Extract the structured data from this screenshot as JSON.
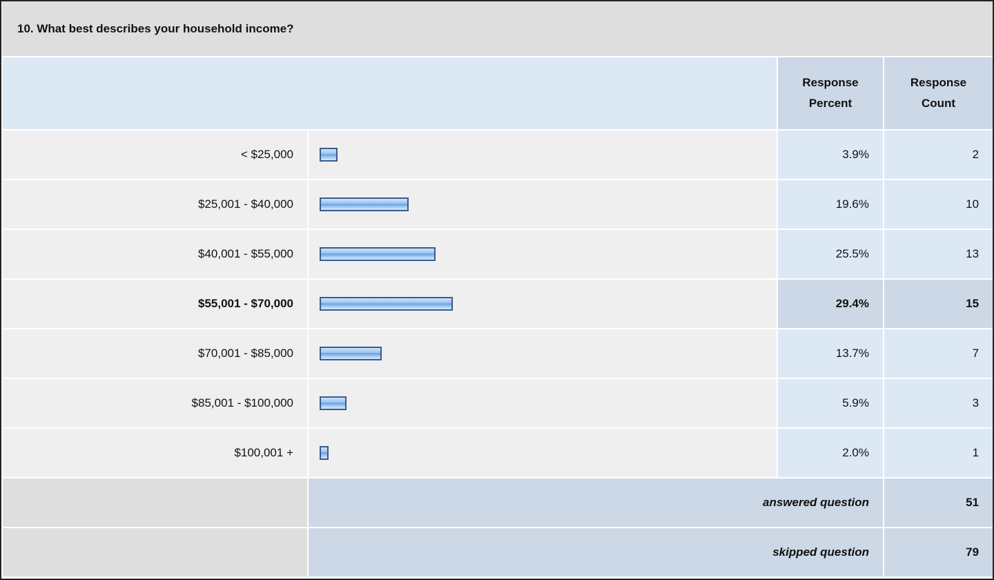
{
  "title": "10. What best describes your household income?",
  "header": {
    "percent": "Response Percent",
    "count": "Response Count"
  },
  "rows": [
    {
      "label": "< $25,000",
      "percent": {
        "value": 3.9,
        "label": "3.9%"
      },
      "count": 2
    },
    {
      "label": "$25,001 - $40,000",
      "percent": {
        "value": 19.6,
        "label": "19.6%"
      },
      "count": 10
    },
    {
      "label": "$40,001 - $55,000",
      "percent": {
        "value": 25.5,
        "label": "25.5%"
      },
      "count": 13
    },
    {
      "label": "$55,001 - $70,000",
      "percent": {
        "value": 29.4,
        "label": "29.4%"
      },
      "count": 15,
      "bold": true
    },
    {
      "label": "$70,001 - $85,000",
      "percent": {
        "value": 13.7,
        "label": "13.7%"
      },
      "count": 7
    },
    {
      "label": "$85,001 - $100,000",
      "percent": {
        "value": 5.9,
        "label": "5.9%"
      },
      "count": 3
    },
    {
      "label": "$100,001 +",
      "percent": {
        "value": 2.0,
        "label": "2.0%"
      },
      "count": 1
    }
  ],
  "answered": {
    "label": "answered question",
    "count": 51
  },
  "skipped": {
    "label": "skipped question",
    "count": 79
  }
}
